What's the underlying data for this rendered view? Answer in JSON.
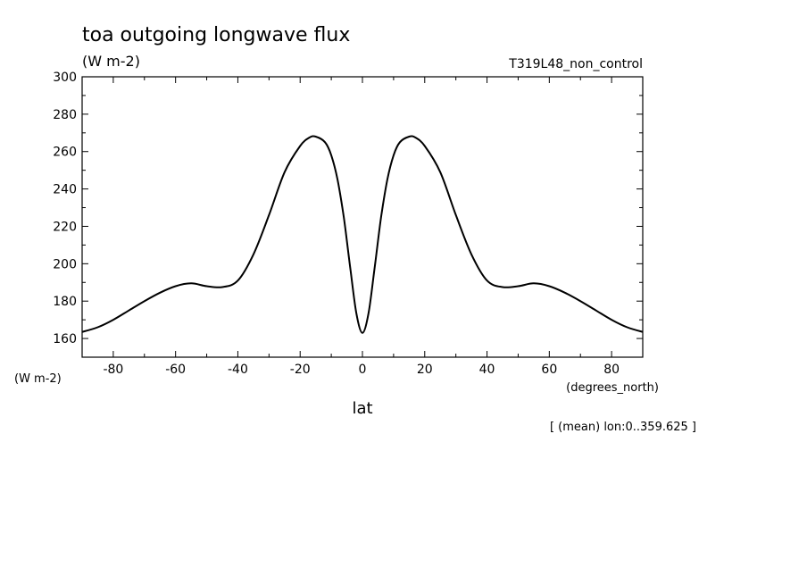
{
  "chart_data": {
    "type": "line",
    "title": "toa outgoing longwave flux",
    "units": "(W m-2)",
    "run_name": "T319L48_non_control",
    "ylabel_units": "(W m-2)",
    "x_units": "(degrees_north)",
    "xlabel": "lat",
    "footnote": "[ (mean) lon:0..359.625 ]",
    "xlim": [
      -90,
      90
    ],
    "ylim": [
      150,
      300
    ],
    "x_ticks": [
      -80,
      -60,
      -40,
      -20,
      0,
      20,
      40,
      60,
      80
    ],
    "x_tick_labels": [
      "-80",
      "-60",
      "-40",
      "-20",
      "0",
      "20",
      "40",
      "60",
      "80"
    ],
    "y_ticks": [
      160,
      180,
      200,
      220,
      240,
      260,
      280,
      300
    ],
    "y_tick_labels": [
      "160",
      "180",
      "200",
      "220",
      "240",
      "260",
      "280",
      "300"
    ],
    "grid": false,
    "line_color": "#000000",
    "series": [
      {
        "x": [
          -90,
          -85,
          -80,
          -75,
          -70,
          -65,
          -60,
          -55,
          -50,
          -45,
          -40,
          -35,
          -30,
          -25,
          -20,
          -17,
          -15,
          -12,
          -10,
          -8,
          -6,
          -4,
          -2,
          0,
          2,
          4,
          6,
          8,
          10,
          12,
          15,
          17,
          20,
          25,
          30,
          35,
          40,
          45,
          50,
          55,
          60,
          65,
          70,
          75,
          80,
          85,
          90
        ],
        "values": [
          163.5,
          166,
          170,
          175,
          180,
          184.5,
          188,
          189.5,
          188,
          187.5,
          191,
          205,
          226,
          249,
          263,
          267.5,
          268,
          265,
          258,
          245,
          225,
          199,
          174,
          163,
          174,
          199,
          225,
          245,
          258,
          265,
          268,
          267.5,
          263,
          249,
          226,
          205,
          191,
          187.5,
          188,
          189.5,
          188,
          184.5,
          180,
          175,
          170,
          166,
          163.5
        ]
      }
    ]
  }
}
